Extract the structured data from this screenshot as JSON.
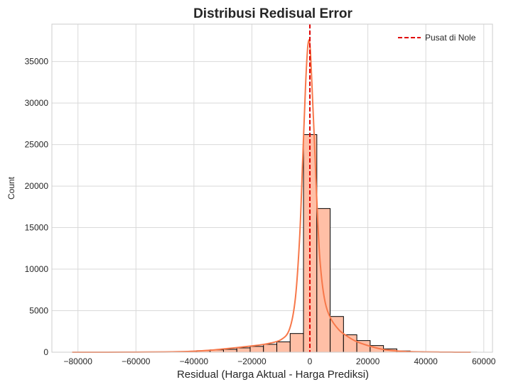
{
  "chart_data": {
    "type": "bar",
    "subtype": "histogram_with_kde",
    "title": "Distribusi Redisual Error",
    "xlabel": "Residual (Harga Aktual - Harga Prediksi)",
    "ylabel": "Count",
    "xlim": [
      -89000,
      63000
    ],
    "ylim": [
      0,
      39500
    ],
    "xticks": [
      -80000,
      -60000,
      -40000,
      -20000,
      0,
      20000,
      40000,
      60000
    ],
    "yticks": [
      0,
      5000,
      10000,
      15000,
      20000,
      25000,
      30000,
      35000
    ],
    "grid": true,
    "legend_position": "top-right",
    "bin_width": 4600,
    "bins": [
      {
        "x0": -80400,
        "count": 5
      },
      {
        "x0": -75800,
        "count": 5
      },
      {
        "x0": -71200,
        "count": 10
      },
      {
        "x0": -66600,
        "count": 10
      },
      {
        "x0": -62000,
        "count": 15
      },
      {
        "x0": -57400,
        "count": 20
      },
      {
        "x0": -52800,
        "count": 30
      },
      {
        "x0": -48200,
        "count": 50
      },
      {
        "x0": -43600,
        "count": 80
      },
      {
        "x0": -39000,
        "count": 180
      },
      {
        "x0": -34400,
        "count": 280
      },
      {
        "x0": -29800,
        "count": 350
      },
      {
        "x0": -25200,
        "count": 520
      },
      {
        "x0": -20600,
        "count": 700
      },
      {
        "x0": -16000,
        "count": 950
      },
      {
        "x0": -11400,
        "count": 1250
      },
      {
        "x0": -6800,
        "count": 2250
      },
      {
        "x0": -2200,
        "count": 26200
      },
      {
        "x0": 2400,
        "count": 17300
      },
      {
        "x0": 7000,
        "count": 4300
      },
      {
        "x0": 11600,
        "count": 2100
      },
      {
        "x0": 16200,
        "count": 1400
      },
      {
        "x0": 20800,
        "count": 800
      },
      {
        "x0": 25400,
        "count": 400
      },
      {
        "x0": 30000,
        "count": 150
      },
      {
        "x0": 34600,
        "count": 60
      },
      {
        "x0": 39200,
        "count": 30
      },
      {
        "x0": 43800,
        "count": 15
      },
      {
        "x0": 48400,
        "count": 10
      },
      {
        "x0": 53000,
        "count": 5
      }
    ],
    "kde": {
      "x": [
        -82000,
        -70000,
        -60000,
        -50000,
        -45000,
        -40000,
        -35000,
        -30000,
        -25000,
        -20000,
        -15000,
        -10000,
        -7000,
        -5000,
        -3500,
        -2500,
        -1500,
        -800,
        -300,
        0,
        300,
        800,
        1500,
        2500,
        3500,
        5000,
        7000,
        10000,
        13000,
        16000,
        20000,
        25000,
        30000,
        35000,
        40000,
        45000,
        50000,
        55500
      ],
      "y": [
        0,
        5,
        15,
        30,
        60,
        120,
        220,
        380,
        560,
        760,
        1000,
        1500,
        2800,
        6500,
        14000,
        23000,
        32000,
        36500,
        37600,
        37000,
        35500,
        31500,
        26000,
        17500,
        11000,
        6500,
        4200,
        2700,
        1900,
        1300,
        800,
        350,
        150,
        60,
        30,
        15,
        5,
        0
      ]
    },
    "reference_line": {
      "x": 0,
      "label": "Pusat di Nole",
      "style": "dashed"
    },
    "colors": {
      "bar_fill": "#ffbfa6",
      "bar_edge": "#000000",
      "kde_line": "#f7784a",
      "reference_line": "#e00000",
      "grid": "#d9d9d9",
      "spine": "#cccccc"
    }
  }
}
